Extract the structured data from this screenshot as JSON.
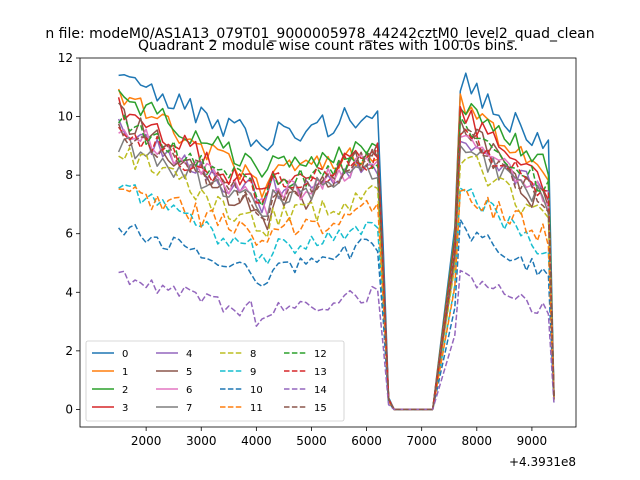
{
  "figure": {
    "suptitle": "n file: modeM0/AS1A13_079T01_9000005978_44242cztM0_level2_quad_clean",
    "offset_label": "+4.3931e8"
  },
  "chart_data": {
    "type": "line",
    "title": "Quadrant 2 module wise count rates with 100.0s bins.",
    "xlabel": "",
    "ylabel": "",
    "xlim": [
      800,
      9800
    ],
    "ylim": [
      -0.6,
      12
    ],
    "xticks": [
      2000,
      3000,
      4000,
      5000,
      6000,
      7000,
      8000,
      9000
    ],
    "yticks": [
      0,
      2,
      4,
      6,
      8,
      10,
      12
    ],
    "grid": false,
    "legend": {
      "placement": "lower-left",
      "columns": 4
    },
    "series": [
      {
        "name": "0",
        "color": "#1f77b4",
        "dash": "solid",
        "level": 9.4,
        "end": 10.3,
        "peak": 11.3,
        "jit": 0.5
      },
      {
        "name": "1",
        "color": "#ff7f0e",
        "dash": "solid",
        "level": 8.2,
        "end": 8.9,
        "peak": 10.8,
        "jit": 0.4
      },
      {
        "name": "2",
        "color": "#2ca02c",
        "dash": "solid",
        "level": 8.6,
        "end": 8.8,
        "peak": 10.7,
        "jit": 0.4
      },
      {
        "name": "3",
        "color": "#d62728",
        "dash": "solid",
        "level": 7.9,
        "end": 8.7,
        "peak": 10.4,
        "jit": 0.4
      },
      {
        "name": "4",
        "color": "#9467bd",
        "dash": "solid",
        "level": 7.6,
        "end": 8.4,
        "peak": 9.6,
        "jit": 0.4
      },
      {
        "name": "5",
        "color": "#8c564b",
        "dash": "solid",
        "level": 7.2,
        "end": 8.9,
        "peak": 10.0,
        "jit": 0.5
      },
      {
        "name": "6",
        "color": "#e377c2",
        "dash": "solid",
        "level": 7.5,
        "end": 8.6,
        "peak": 9.8,
        "jit": 0.4
      },
      {
        "name": "7",
        "color": "#7f7f7f",
        "dash": "solid",
        "level": 7.4,
        "end": 8.3,
        "peak": 9.1,
        "jit": 0.4
      },
      {
        "name": "8",
        "color": "#bcbd22",
        "dash": "dashed",
        "level": 6.6,
        "end": 7.4,
        "peak": 8.9,
        "jit": 0.4
      },
      {
        "name": "9",
        "color": "#17becf",
        "dash": "dashed",
        "level": 5.6,
        "end": 6.3,
        "peak": 7.7,
        "jit": 0.3
      },
      {
        "name": "10",
        "color": "#1f77b4",
        "dash": "dashed",
        "level": 4.9,
        "end": 5.7,
        "peak": 6.3,
        "jit": 0.3
      },
      {
        "name": "11",
        "color": "#ff7f0e",
        "dash": "dashed",
        "level": 6.2,
        "end": 6.9,
        "peak": 7.6,
        "jit": 0.4
      },
      {
        "name": "12",
        "color": "#2ca02c",
        "dash": "dashed",
        "level": 7.9,
        "end": 8.5,
        "peak": 9.8,
        "jit": 0.4
      },
      {
        "name": "13",
        "color": "#d62728",
        "dash": "dashed",
        "level": 7.7,
        "end": 8.7,
        "peak": 9.6,
        "jit": 0.4
      },
      {
        "name": "14",
        "color": "#9467bd",
        "dash": "dashed",
        "level": 3.5,
        "end": 4.0,
        "peak": 4.6,
        "jit": 0.3
      },
      {
        "name": "15",
        "color": "#8c564b",
        "dash": "dashed",
        "level": 7.4,
        "end": 8.8,
        "peak": 9.6,
        "jit": 0.4
      }
    ],
    "segments": {
      "seg1": {
        "start": 1500,
        "end": 6200,
        "step": 100
      },
      "drop": [
        {
          "x": 6300,
          "frac": 0.55
        },
        {
          "x": 6400,
          "frac": 0.04
        },
        {
          "x": 6500,
          "frac": 0.0
        }
      ],
      "gap_end": 7200,
      "seg2": {
        "start": 7600,
        "end": 9300,
        "step": 100
      },
      "tail": {
        "x": 9400,
        "frac": 0.05
      }
    }
  }
}
